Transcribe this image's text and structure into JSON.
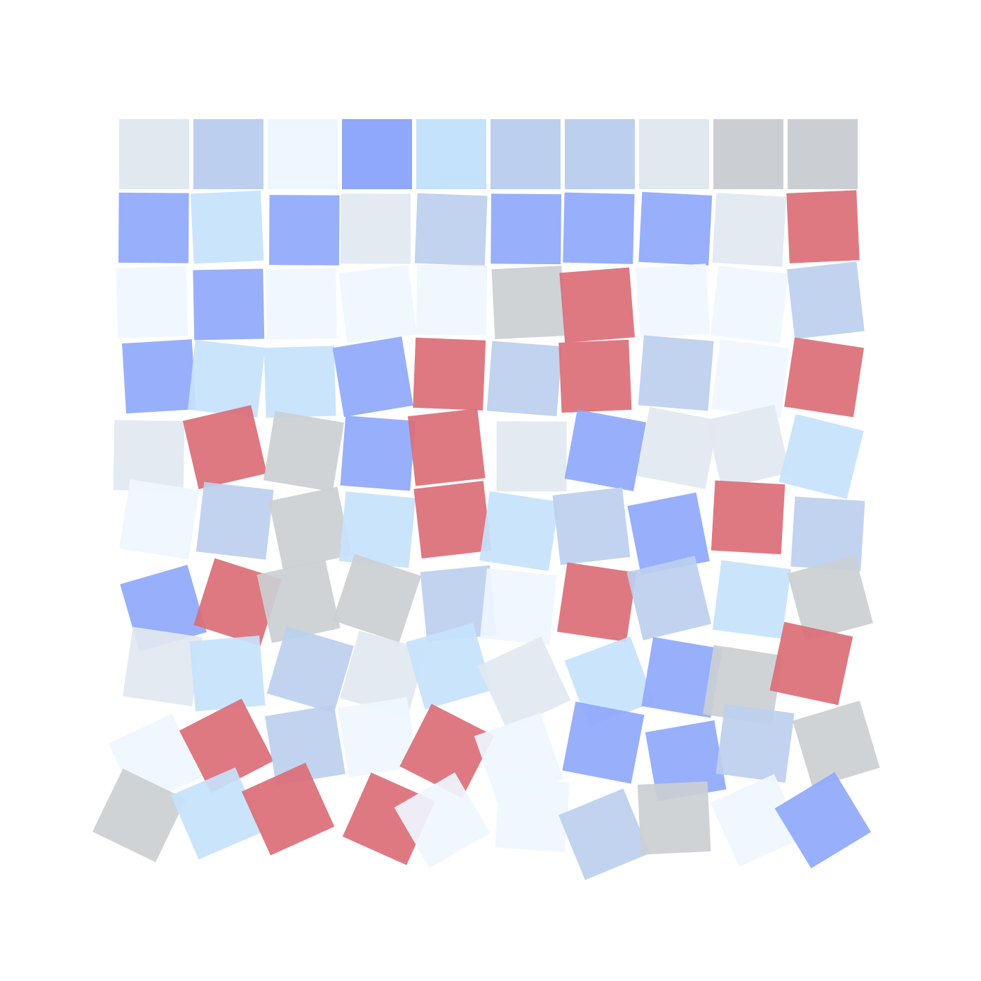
{
  "palette": {
    "gray-light": "#E2E8F0",
    "blue-pale": "#BCCFEE",
    "white-blue": "#EFF6FF",
    "blue-medium": "#8FA8FC",
    "sky-light": "#C5E2FC",
    "gray-medium": "#CBCFD3",
    "red": "#DB6E77"
  },
  "tiles": [
    [
      "gray-light",
      "blue-pale",
      "white-blue",
      "blue-medium",
      "sky-light",
      "blue-pale",
      "blue-pale",
      "gray-light",
      "gray-medium",
      "gray-medium"
    ],
    [
      "blue-medium",
      "sky-light",
      "blue-medium",
      "gray-light",
      "blue-pale",
      "blue-medium",
      "blue-medium",
      "blue-medium",
      "gray-light",
      "red"
    ],
    [
      "white-blue",
      "blue-medium",
      "white-blue",
      "white-blue",
      "white-blue",
      "gray-medium",
      "red",
      "white-blue",
      "white-blue",
      "blue-pale"
    ],
    [
      "blue-medium",
      "sky-light",
      "sky-light",
      "blue-medium",
      "red",
      "blue-pale",
      "red",
      "blue-pale",
      "white-blue",
      "red"
    ],
    [
      "gray-light",
      "red",
      "gray-medium",
      "blue-medium",
      "red",
      "gray-light",
      "blue-medium",
      "gray-light",
      "gray-light",
      "sky-light"
    ],
    [
      "white-blue",
      "blue-pale",
      "gray-medium",
      "sky-light",
      "red",
      "sky-light",
      "blue-pale",
      "blue-medium",
      "red",
      "blue-pale"
    ],
    [
      "blue-medium",
      "red",
      "gray-medium",
      "gray-medium",
      "blue-pale",
      "white-blue",
      "red",
      "blue-pale",
      "sky-light",
      "gray-medium"
    ],
    [
      "gray-light",
      "sky-light",
      "blue-pale",
      "gray-light",
      "sky-light",
      "gray-light",
      "sky-light",
      "blue-medium",
      "gray-medium",
      "red"
    ],
    [
      "white-blue",
      "red",
      "blue-pale",
      "white-blue",
      "red",
      "white-blue",
      "blue-medium",
      "blue-medium",
      "blue-pale",
      "gray-medium"
    ],
    [
      "gray-medium",
      "sky-light",
      "red",
      "red",
      "white-blue",
      "white-blue",
      "blue-pale",
      "gray-medium",
      "white-blue",
      "blue-medium"
    ]
  ]
}
